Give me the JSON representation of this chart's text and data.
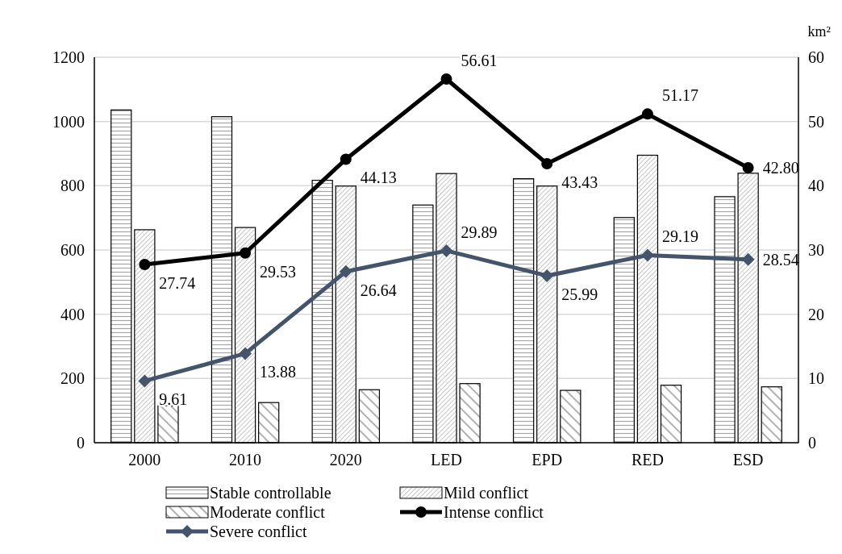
{
  "chart_data": {
    "type": "bar",
    "categories": [
      "2000",
      "2010",
      "2020",
      "LED",
      "EPD",
      "RED",
      "ESD"
    ],
    "y2label": "km²",
    "ylim": [
      0,
      1200
    ],
    "yticks": [
      0,
      200,
      400,
      600,
      800,
      1000,
      1200
    ],
    "y2lim": [
      0,
      60
    ],
    "y2ticks": [
      0,
      10,
      20,
      30,
      40,
      50,
      60
    ],
    "grid": "y",
    "legend": "bottom",
    "series": [
      {
        "name": "Stable controllable",
        "color": "#000000",
        "values": [
          1036,
          1015,
          817,
          740,
          822,
          701,
          766
        ]
      },
      {
        "name": "Mild conflict",
        "color": "#000000",
        "values": [
          663,
          670,
          799,
          838,
          799,
          895,
          839
        ]
      },
      {
        "name": "Moderate conflict",
        "color": "#000000",
        "values": [
          115,
          125,
          165,
          184,
          163,
          179,
          174
        ]
      },
      {
        "name": "Intense conflict",
        "type": "line",
        "axis": "y2",
        "marker": "circle",
        "color": "#000000",
        "values": [
          27.74,
          29.53,
          44.13,
          56.61,
          43.43,
          51.17,
          42.8
        ],
        "value_labels": [
          "27.74",
          "29.53",
          "44.13",
          "56.61",
          "43.43",
          "51.17",
          "42.80"
        ]
      },
      {
        "name": "Severe conflict",
        "type": "line",
        "axis": "y2",
        "marker": "diamond",
        "color": "#44546a",
        "values": [
          9.61,
          13.88,
          26.64,
          29.89,
          25.99,
          29.19,
          28.54
        ],
        "value_labels": [
          "9.61",
          "13.88",
          "26.64",
          "29.89",
          "25.99",
          "29.19",
          "28.54"
        ]
      }
    ]
  }
}
